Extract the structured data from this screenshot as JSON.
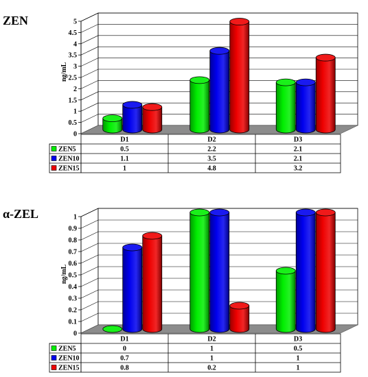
{
  "chart_data": [
    {
      "type": "bar",
      "title": "ZEN",
      "ylabel": "ng/mL",
      "ylim": [
        0,
        5
      ],
      "yticks": [
        "0",
        "0.5",
        "1",
        "1.5",
        "2",
        "2.5",
        "3",
        "3.5",
        "4",
        "4.5",
        "5"
      ],
      "categories": [
        "D1",
        "D2",
        "D3"
      ],
      "series": [
        {
          "name": "ZEN5",
          "color": "#00ee00",
          "values": [
            0.5,
            2.2,
            2.1
          ],
          "labels": [
            "0.5",
            "2.2",
            "2.1"
          ]
        },
        {
          "name": "ZEN10",
          "color": "#0000ee",
          "values": [
            1.1,
            3.5,
            2.1
          ],
          "labels": [
            "1.1",
            "3.5",
            "2.1"
          ]
        },
        {
          "name": "ZEN15",
          "color": "#ee0000",
          "values": [
            1,
            4.8,
            3.2
          ],
          "labels": [
            "1",
            "4.8",
            "3.2"
          ]
        }
      ],
      "grid": true,
      "legend": "data-table"
    },
    {
      "type": "bar",
      "title": "α-ZEL",
      "ylabel": "ng/mL",
      "ylim": [
        0,
        1
      ],
      "yticks": [
        "0",
        "0.1",
        "0.2",
        "0.3",
        "0.4",
        "0.5",
        "0.6",
        "0.7",
        "0.8",
        "0.9",
        "1"
      ],
      "categories": [
        "D1",
        "D2",
        "D3"
      ],
      "series": [
        {
          "name": "ZEN5",
          "color": "#00ee00",
          "values": [
            0,
            1,
            0.5
          ],
          "labels": [
            "0",
            "1",
            "0.5"
          ]
        },
        {
          "name": "ZEN10",
          "color": "#0000ee",
          "values": [
            0.7,
            1,
            1
          ],
          "labels": [
            "0.7",
            "1",
            "1"
          ]
        },
        {
          "name": "ZEN15",
          "color": "#ee0000",
          "values": [
            0.8,
            0.2,
            1
          ],
          "labels": [
            "0.8",
            "0.2",
            "1"
          ]
        }
      ],
      "grid": true,
      "legend": "data-table"
    }
  ]
}
